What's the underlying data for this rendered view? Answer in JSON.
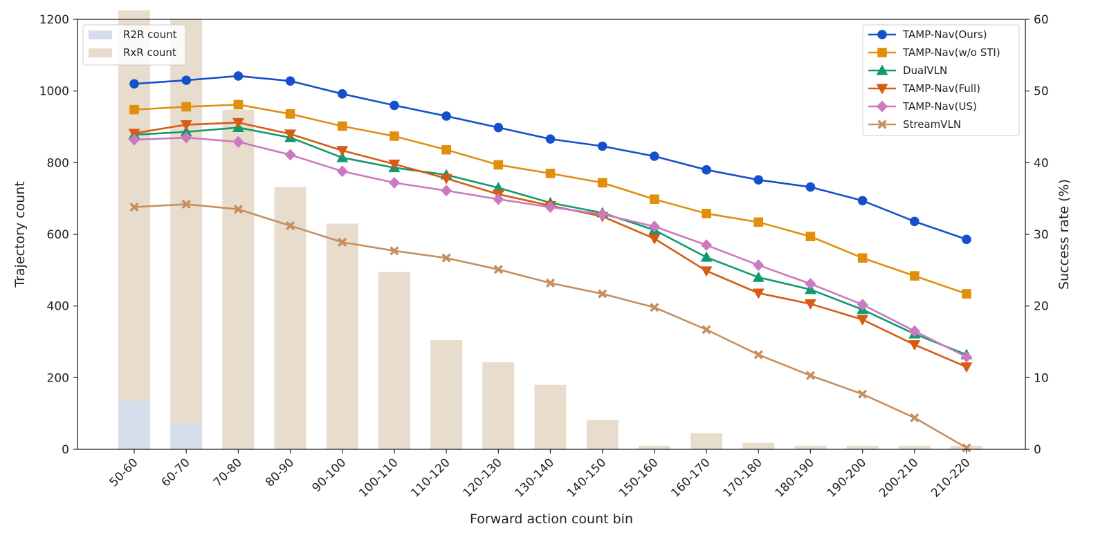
{
  "chart_data": {
    "type": "bar+line",
    "xlabel": "Forward action count bin",
    "ylabel_left": "Trajectory count",
    "ylabel_right": "Success rate (%)",
    "ylim_left": [
      0,
      1200
    ],
    "ylim_right": [
      0,
      60
    ],
    "yticks_left": [
      0,
      200,
      400,
      600,
      800,
      1000,
      1200
    ],
    "yticks_right": [
      0,
      10,
      20,
      30,
      40,
      50,
      60
    ],
    "categories": [
      "50-60",
      "60-70",
      "70-80",
      "80-90",
      "90-100",
      "100-110",
      "110-120",
      "120-130",
      "130-140",
      "140-150",
      "150-160",
      "160-170",
      "170-180",
      "180-190",
      "190-200",
      "200-210",
      "210-220"
    ],
    "bars": [
      {
        "name": "R2R count",
        "color": "#d5deec",
        "values": [
          135,
          72,
          0,
          0,
          0,
          0,
          0,
          0,
          0,
          0,
          0,
          0,
          0,
          0,
          0,
          0,
          0
        ]
      },
      {
        "name": "RxR count",
        "color": "#e8dccd",
        "values": [
          1090,
          1130,
          948,
          732,
          630,
          495,
          305,
          243,
          180,
          82,
          10,
          45,
          18,
          10,
          10,
          10,
          10
        ]
      }
    ],
    "bar_legend_placement": "upper-left",
    "line_legend_placement": "upper-right",
    "series": [
      {
        "name": "TAMP-Nav(Ours)",
        "color": "#1550cc",
        "marker": "circle",
        "values": [
          51.0,
          51.5,
          52.1,
          51.4,
          49.6,
          48.0,
          46.5,
          44.9,
          43.3,
          42.3,
          40.9,
          39.0,
          37.6,
          36.6,
          34.7,
          31.8,
          29.3
        ]
      },
      {
        "name": "TAMP-Nav(w/o STI)",
        "color": "#e08e0b",
        "marker": "square",
        "values": [
          47.4,
          47.8,
          48.1,
          46.8,
          45.1,
          43.7,
          41.8,
          39.7,
          38.5,
          37.2,
          34.9,
          32.9,
          31.7,
          29.7,
          26.7,
          24.2,
          21.7
        ]
      },
      {
        "name": "DualVLN",
        "color": "#109a6e",
        "marker": "triangle-up",
        "values": [
          43.9,
          44.3,
          44.9,
          43.5,
          40.7,
          39.3,
          38.3,
          36.5,
          34.4,
          33.0,
          30.6,
          26.8,
          24.0,
          22.3,
          19.5,
          16.1,
          13.2
        ]
      },
      {
        "name": "TAMP-Nav(Full)",
        "color": "#d65b13",
        "marker": "triangle-down",
        "values": [
          44.1,
          45.3,
          45.6,
          44.0,
          41.7,
          39.8,
          37.8,
          35.6,
          34.0,
          32.5,
          29.4,
          24.9,
          21.8,
          20.3,
          18.1,
          14.6,
          11.5
        ]
      },
      {
        "name": "TAMP-Nav(US)",
        "color": "#cc79c1",
        "marker": "diamond",
        "values": [
          43.2,
          43.5,
          42.9,
          41.1,
          38.8,
          37.2,
          36.1,
          34.9,
          33.8,
          32.8,
          31.1,
          28.5,
          25.7,
          23.1,
          20.2,
          16.5,
          12.9
        ]
      },
      {
        "name": "StreamVLN",
        "color": "#c78e5e",
        "marker": "cross",
        "values": [
          33.8,
          34.2,
          33.5,
          31.2,
          28.9,
          27.7,
          26.7,
          25.1,
          23.2,
          21.7,
          19.8,
          16.7,
          13.2,
          10.3,
          7.7,
          4.4,
          0.2
        ]
      }
    ],
    "grid": false
  }
}
